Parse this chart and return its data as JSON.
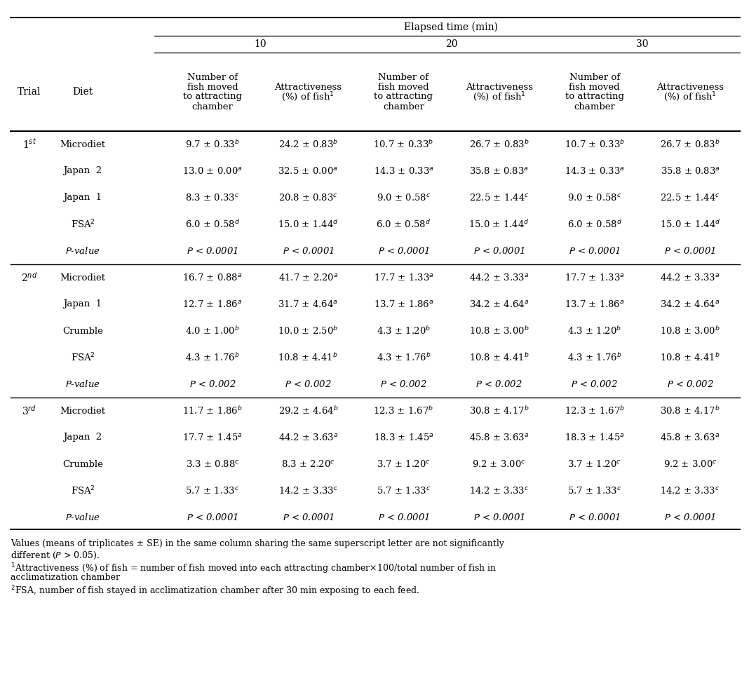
{
  "title": "Elapsed time (min)",
  "rows": [
    {
      "trial": "1$^{st}$",
      "diet": "Microdiet",
      "c1": "9.7 ± 0.33$^{b}$",
      "c2": "24.2 ± 0.83$^{b}$",
      "c3": "10.7 ± 0.33$^{b}$",
      "c4": "26.7 ± 0.83$^{b}$",
      "c5": "10.7 ± 0.33$^{b}$",
      "c6": "26.7 ± 0.83$^{b}$",
      "italic": false,
      "group_sep": false
    },
    {
      "trial": "",
      "diet": "Japan  2",
      "c1": "13.0 ± 0.00$^{a}$",
      "c2": "32.5 ± 0.00$^{a}$",
      "c3": "14.3 ± 0.33$^{a}$",
      "c4": "35.8 ± 0.83$^{a}$",
      "c5": "14.3 ± 0.33$^{a}$",
      "c6": "35.8 ± 0.83$^{a}$",
      "italic": false,
      "group_sep": false
    },
    {
      "trial": "",
      "diet": "Japan  1",
      "c1": "8.3 ± 0.33$^{c}$",
      "c2": "20.8 ± 0.83$^{c}$",
      "c3": "9.0 ± 0.58$^{c}$",
      "c4": "22.5 ± 1.44$^{c}$",
      "c5": "9.0 ± 0.58$^{c}$",
      "c6": "22.5 ± 1.44$^{c}$",
      "italic": false,
      "group_sep": false
    },
    {
      "trial": "",
      "diet": "FSA$^{2}$",
      "c1": "6.0 ± 0.58$^{d}$",
      "c2": "15.0 ± 1.44$^{d}$",
      "c3": "6.0 ± 0.58$^{d}$",
      "c4": "15.0 ± 1.44$^{d}$",
      "c5": "6.0 ± 0.58$^{d}$",
      "c6": "15.0 ± 1.44$^{d}$",
      "italic": false,
      "group_sep": false
    },
    {
      "trial": "",
      "diet": "$P$-value",
      "c1": "$P$ < 0.0001",
      "c2": "$P$ < 0.0001",
      "c3": "$P$ < 0.0001",
      "c4": "$P$ < 0.0001",
      "c5": "$P$ < 0.0001",
      "c6": "$P$ < 0.0001",
      "italic": true,
      "group_sep": false
    },
    {
      "trial": "2$^{nd}$",
      "diet": "Microdiet",
      "c1": "16.7 ± 0.88$^{a}$",
      "c2": "41.7 ± 2.20$^{a}$",
      "c3": "17.7 ± 1.33$^{a}$",
      "c4": "44.2 ± 3.33$^{a}$",
      "c5": "17.7 ± 1.33$^{a}$",
      "c6": "44.2 ± 3.33$^{a}$",
      "italic": false,
      "group_sep": true
    },
    {
      "trial": "",
      "diet": "Japan  1",
      "c1": "12.7 ± 1.86$^{a}$",
      "c2": "31.7 ± 4.64$^{a}$",
      "c3": "13.7 ± 1.86$^{a}$",
      "c4": "34.2 ± 4.64$^{a}$",
      "c5": "13.7 ± 1.86$^{a}$",
      "c6": "34.2 ± 4.64$^{a}$",
      "italic": false,
      "group_sep": false
    },
    {
      "trial": "",
      "diet": "Crumble",
      "c1": "4.0 ± 1.00$^{b}$",
      "c2": "10.0 ± 2.50$^{b}$",
      "c3": "4.3 ± 1.20$^{b}$",
      "c4": "10.8 ± 3.00$^{b}$",
      "c5": "4.3 ± 1.20$^{b}$",
      "c6": "10.8 ± 3.00$^{b}$",
      "italic": false,
      "group_sep": false
    },
    {
      "trial": "",
      "diet": "FSA$^{2}$",
      "c1": "4.3 ± 1.76$^{b}$",
      "c2": "10.8 ± 4.41$^{b}$",
      "c3": "4.3 ± 1.76$^{b}$",
      "c4": "10.8 ± 4.41$^{b}$",
      "c5": "4.3 ± 1.76$^{b}$",
      "c6": "10.8 ± 4.41$^{b}$",
      "italic": false,
      "group_sep": false
    },
    {
      "trial": "",
      "diet": "$P$-value",
      "c1": "$P$ < 0.002",
      "c2": "$P$ < 0.002",
      "c3": "$P$ < 0.002",
      "c4": "$P$ < 0.002",
      "c5": "$P$ < 0.002",
      "c6": "$P$ < 0.002",
      "italic": true,
      "group_sep": false
    },
    {
      "trial": "3$^{rd}$",
      "diet": "Microdiet",
      "c1": "11.7 ± 1.86$^{b}$",
      "c2": "29.2 ± 4.64$^{b}$",
      "c3": "12.3 ± 1.67$^{b}$",
      "c4": "30.8 ± 4.17$^{b}$",
      "c5": "12.3 ± 1.67$^{b}$",
      "c6": "30.8 ± 4.17$^{b}$",
      "italic": false,
      "group_sep": true
    },
    {
      "trial": "",
      "diet": "Japan  2",
      "c1": "17.7 ± 1.45$^{a}$",
      "c2": "44.2 ± 3.63$^{a}$",
      "c3": "18.3 ± 1.45$^{a}$",
      "c4": "45.8 ± 3.63$^{a}$",
      "c5": "18.3 ± 1.45$^{a}$",
      "c6": "45.8 ± 3.63$^{a}$",
      "italic": false,
      "group_sep": false
    },
    {
      "trial": "",
      "diet": "Crumble",
      "c1": "3.3 ± 0.88$^{c}$",
      "c2": "8.3 ± 2.20$^{c}$",
      "c3": "3.7 ± 1.20$^{c}$",
      "c4": "9.2 ± 3.00$^{c}$",
      "c5": "3.7 ± 1.20$^{c}$",
      "c6": "9.2 ± 3.00$^{c}$",
      "italic": false,
      "group_sep": false
    },
    {
      "trial": "",
      "diet": "FSA$^{2}$",
      "c1": "5.7 ± 1.33$^{c}$",
      "c2": "14.2 ± 3.33$^{c}$",
      "c3": "5.7 ± 1.33$^{c}$",
      "c4": "14.2 ± 3.33$^{c}$",
      "c5": "5.7 ± 1.33$^{c}$",
      "c6": "14.2 ± 3.33$^{c}$",
      "italic": false,
      "group_sep": false
    },
    {
      "trial": "",
      "diet": "$P$-value",
      "c1": "$P$ < 0.0001",
      "c2": "$P$ < 0.0001",
      "c3": "$P$ < 0.0001",
      "c4": "$P$ < 0.0001",
      "c5": "$P$ < 0.0001",
      "c6": "$P$ < 0.0001",
      "italic": true,
      "group_sep": false
    }
  ],
  "header_cols": [
    "Number of\nfish moved\nto attracting\nchamber",
    "Attractiveness\n(%) of fish$^{1}$",
    "Number of\nfish moved\nto attracting\nchamber",
    "Attractiveness\n(%) of fish$^{1}$",
    "Number of\nfish moved\nto attracting\nchamber",
    "Attractiveness\n(%) of fish$^{1}$"
  ],
  "font_size": 9.5,
  "font_family": "DejaVu Serif"
}
